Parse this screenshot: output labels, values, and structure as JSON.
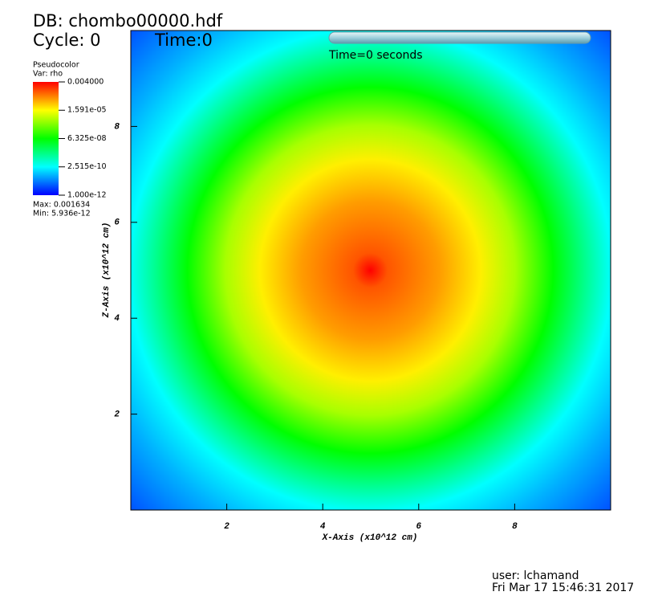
{
  "chart_data": {
    "type": "pseudocolor",
    "db_title": "DB: chombo00000.hdf",
    "cycle": "Cycle: 0",
    "time": "Time:0",
    "time_slider_label": "Time=0 seconds",
    "legend_title": "Pseudocolor",
    "legend_var": "Var: rho",
    "legend_max": "Max: 0.001634",
    "legend_min": "Min: 5.936e-12",
    "xlabel": "X-Axis (x10^12 cm)",
    "ylabel": "Z-Axis (x10^12 cm)",
    "user": "user: lchamand",
    "date": "Fri Mar 17 15:46:31 2017",
    "xlim": [
      0,
      10
    ],
    "ylim": [
      0,
      10
    ],
    "xticks": [
      2,
      4,
      6,
      8
    ],
    "yticks": [
      2,
      4,
      6,
      8
    ],
    "colorbar_scale": "log",
    "colorbar_lim": [
      1e-12,
      0.004
    ],
    "colorbar_ticks": [
      {
        "value": 0.004,
        "label": "0.004000"
      },
      {
        "value": 1.591e-05,
        "label": "1.591e-05"
      },
      {
        "value": 6.325e-08,
        "label": "6.325e-08"
      },
      {
        "value": 2.515e-10,
        "label": "2.515e-10"
      },
      {
        "value": 1e-12,
        "label": "1.000e-12"
      }
    ]
  }
}
